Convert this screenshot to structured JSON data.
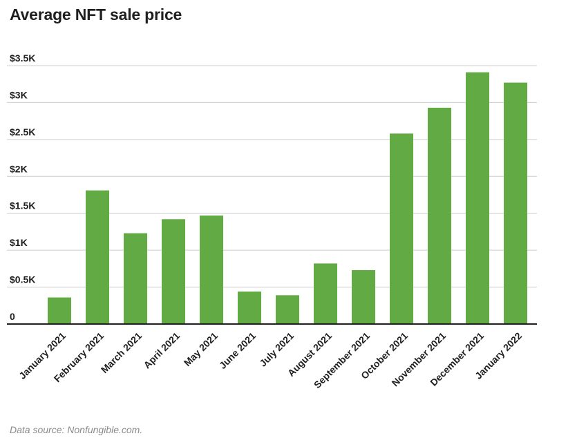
{
  "chart_data": {
    "type": "bar",
    "title": "Average NFT sale price",
    "xlabel": "",
    "ylabel": "",
    "categories": [
      "January 2021",
      "February 2021",
      "March 2021",
      "April 2021",
      "May 2021",
      "June 2021",
      "July 2021",
      "August 2021",
      "September 2021",
      "October 2021",
      "November 2021",
      "December 2021",
      "January 2022"
    ],
    "values": [
      360,
      1810,
      1230,
      1420,
      1470,
      440,
      390,
      820,
      730,
      2580,
      2930,
      3410,
      3270
    ],
    "ylim": [
      0,
      3500
    ],
    "yticks": [
      0,
      500,
      1000,
      1500,
      2000,
      2500,
      3000,
      3500
    ],
    "ytick_labels": [
      "0",
      "$0.5K",
      "$1K",
      "$1.5K",
      "$2K",
      "$2.5K",
      "$3K",
      "$3.5K"
    ],
    "grid": true,
    "bar_color": "#62ab44",
    "grid_color": "#cccccc",
    "axis_color": "#1f1f1f"
  },
  "source_note": "Data source: Nonfungible.com."
}
